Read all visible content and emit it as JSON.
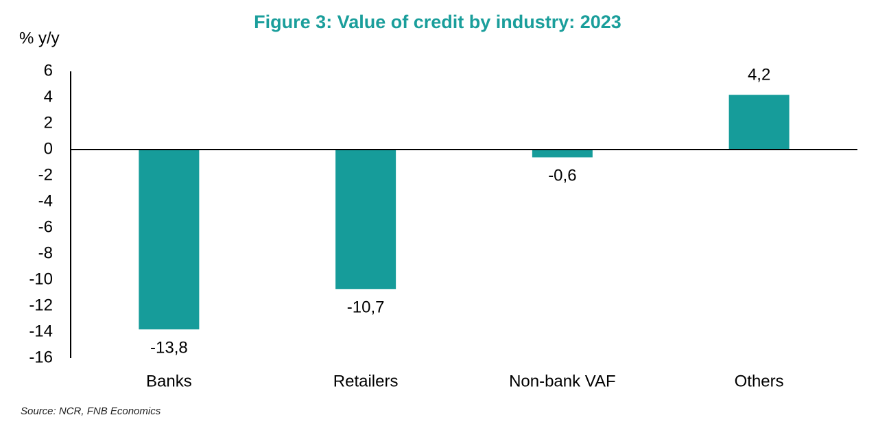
{
  "chart_data": {
    "type": "bar",
    "title": "Figure 3: Value of credit by industry: 2023",
    "y_label": "% y/y",
    "source": "Source: NCR, FNB Economics",
    "categories": [
      "Banks",
      "Retailers",
      "Non-bank VAF",
      "Others"
    ],
    "values": [
      -13.8,
      -10.7,
      -0.6,
      4.2
    ],
    "value_labels": [
      "-13,8",
      "-10,7",
      "-0,6",
      "4,2"
    ],
    "color": "#169c9a",
    "ylim": [
      -16,
      6
    ],
    "yticks": [
      -16,
      -14,
      -12,
      -10,
      -8,
      -6,
      -4,
      -2,
      0,
      2,
      4,
      6
    ],
    "grid": false
  }
}
